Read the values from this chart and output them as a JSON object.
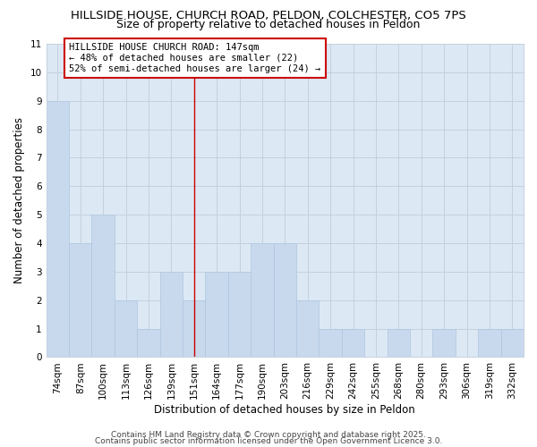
{
  "title_line1": "HILLSIDE HOUSE, CHURCH ROAD, PELDON, COLCHESTER, CO5 7PS",
  "title_line2": "Size of property relative to detached houses in Peldon",
  "xlabel": "Distribution of detached houses by size in Peldon",
  "ylabel": "Number of detached properties",
  "categories": [
    "74sqm",
    "87sqm",
    "100sqm",
    "113sqm",
    "126sqm",
    "139sqm",
    "151sqm",
    "164sqm",
    "177sqm",
    "190sqm",
    "203sqm",
    "216sqm",
    "229sqm",
    "242sqm",
    "255sqm",
    "268sqm",
    "280sqm",
    "293sqm",
    "306sqm",
    "319sqm",
    "332sqm"
  ],
  "values": [
    9,
    4,
    5,
    2,
    1,
    3,
    2,
    3,
    3,
    4,
    4,
    2,
    1,
    1,
    0,
    1,
    0,
    1,
    0,
    1,
    1
  ],
  "bar_color": "#c8d9ed",
  "bar_edge_color": "#aec6e0",
  "bar_edge_width": 0.5,
  "red_line_index": 6,
  "red_line_color": "#cc0000",
  "annotation_title": "HILLSIDE HOUSE CHURCH ROAD: 147sqm",
  "annotation_line2": "← 48% of detached houses are smaller (22)",
  "annotation_line3": "52% of semi-detached houses are larger (24) →",
  "annotation_box_color": "#ffffff",
  "annotation_border_color": "#cc0000",
  "ylim": [
    0,
    11
  ],
  "yticks": [
    0,
    1,
    2,
    3,
    4,
    5,
    6,
    7,
    8,
    9,
    10,
    11
  ],
  "grid_color": "#c5d0de",
  "plot_bg_color": "#dce9f5",
  "figure_bg_color": "#ffffff",
  "footer_line1": "Contains HM Land Registry data © Crown copyright and database right 2025.",
  "footer_line2": "Contains public sector information licensed under the Open Government Licence 3.0.",
  "title_fontsize": 9.5,
  "subtitle_fontsize": 9.0,
  "axis_label_fontsize": 8.5,
  "tick_fontsize": 7.5,
  "annotation_fontsize": 7.5,
  "footer_fontsize": 6.5
}
